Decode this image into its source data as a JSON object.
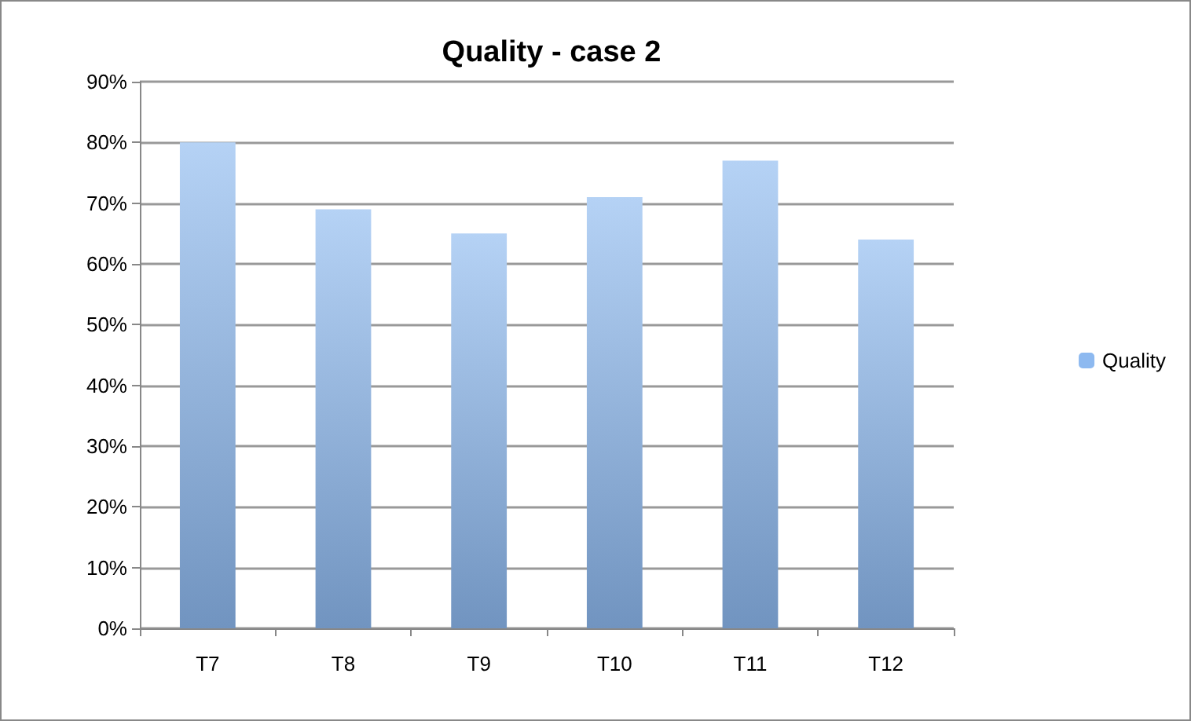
{
  "chart_data": {
    "type": "bar",
    "title": "Quality - case 2",
    "categories": [
      "T7",
      "T8",
      "T9",
      "T10",
      "T11",
      "T12"
    ],
    "series": [
      {
        "name": "Quality",
        "color": "#8db9f0",
        "values": [
          80,
          69,
          65,
          71,
          77,
          64
        ]
      }
    ],
    "ylim": [
      0,
      90
    ],
    "yticks": [
      {
        "value": 0,
        "label": "0%"
      },
      {
        "value": 10,
        "label": "10%"
      },
      {
        "value": 20,
        "label": "20%"
      },
      {
        "value": 30,
        "label": "30%"
      },
      {
        "value": 40,
        "label": "40%"
      },
      {
        "value": 50,
        "label": "50%"
      },
      {
        "value": 60,
        "label": "60%"
      },
      {
        "value": 70,
        "label": "70%"
      },
      {
        "value": 80,
        "label": "80%"
      },
      {
        "value": 90,
        "label": "90%"
      }
    ],
    "grid": "y",
    "legend": "right"
  }
}
